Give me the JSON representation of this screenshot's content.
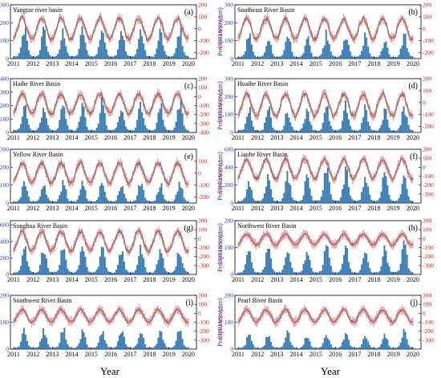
{
  "colors": {
    "bar": "#2f7fc0",
    "bar_edge": "#1b4f80",
    "line": "#8a7070",
    "line_err": "#e05050",
    "left_axis": "#1f3fbf",
    "right_axis": "#d21e1e"
  },
  "x_axis_label": "Year",
  "left_axis_label": "Precipitation (mm)",
  "right_axis_label": "TWSA (mm)",
  "chart_data": [
    {
      "type": "bar+line",
      "panel": "(a)",
      "title": "Yangtze river basin",
      "x_ticks": [
        "2011",
        "2012",
        "2013",
        "2014",
        "2015",
        "2016",
        "2017",
        "2018",
        "2019",
        "2020"
      ],
      "x_range": [
        2011,
        2020
      ],
      "left_ylim": [
        0,
        300
      ],
      "left_ticks": [
        0,
        100,
        200,
        300
      ],
      "right_ylim": [
        -250,
        200
      ],
      "right_ticks": [
        -200,
        -100,
        0,
        100,
        200
      ],
      "precip_annual_peak_mm": [
        175,
        165,
        160,
        170,
        180,
        175,
        165,
        160,
        170
      ],
      "twsa_mean_mm": 0,
      "twsa_amplitude_mm": 90
    },
    {
      "type": "bar+line",
      "panel": "(b)",
      "title": "Southeast River   Basin",
      "x_ticks": [
        "2011",
        "2012",
        "2013",
        "2014",
        "2015",
        "2016",
        "2017",
        "2018",
        "2019",
        "2020"
      ],
      "x_range": [
        2011,
        2020
      ],
      "left_ylim": [
        0,
        300
      ],
      "left_ticks": [
        0,
        100,
        200,
        300
      ],
      "right_ylim": [
        -250,
        200
      ],
      "right_ticks": [
        -200,
        -100,
        0,
        100,
        200
      ],
      "precip_annual_peak_mm": [
        140,
        125,
        150,
        120,
        145,
        135,
        130,
        110,
        140
      ],
      "twsa_mean_mm": 0,
      "twsa_amplitude_mm": 85
    },
    {
      "type": "bar+line",
      "panel": "(c)",
      "title": "Haihe River Basin",
      "x_ticks": [
        "2011",
        "2012",
        "2013",
        "2014",
        "2015",
        "2016",
        "2017",
        "2018",
        "2019",
        "2020"
      ],
      "x_range": [
        2011,
        2020
      ],
      "left_ylim": [
        0,
        400
      ],
      "left_ticks": [
        0,
        100,
        200,
        300,
        400
      ],
      "right_ylim": [
        -400,
        200
      ],
      "right_ticks": [
        -400,
        -300,
        -200,
        -100,
        0,
        100,
        200
      ],
      "precip_annual_peak_mm": [
        220,
        210,
        230,
        200,
        240,
        225,
        235,
        215,
        240
      ],
      "twsa_mean_mm": -80,
      "twsa_amplitude_mm": 110
    },
    {
      "type": "bar+line",
      "panel": "(d)",
      "title": "Huaihe River Basin",
      "x_ticks": [
        "2011",
        "2012",
        "2013",
        "2014",
        "2015",
        "2016",
        "2017",
        "2018",
        "2019",
        "2020"
      ],
      "x_range": [
        2011,
        2020
      ],
      "left_ylim": [
        0,
        300
      ],
      "left_ticks": [
        0,
        100,
        200,
        300
      ],
      "right_ylim": [
        -250,
        200
      ],
      "right_ticks": [
        -200,
        -100,
        0,
        100,
        200
      ],
      "precip_annual_peak_mm": [
        150,
        140,
        130,
        150,
        145,
        160,
        140,
        135,
        150
      ],
      "twsa_mean_mm": -20,
      "twsa_amplitude_mm": 90
    },
    {
      "type": "bar+line",
      "panel": "(e)",
      "title": "Yellow River Basin",
      "x_ticks": [
        "2011",
        "2012",
        "2013",
        "2014",
        "2015",
        "2016",
        "2017",
        "2018",
        "2019",
        "2020"
      ],
      "x_range": [
        2011,
        2020
      ],
      "left_ylim": [
        0,
        300
      ],
      "left_ticks": [
        0,
        100,
        200,
        300
      ],
      "right_ylim": [
        -250,
        200
      ],
      "right_ticks": [
        -200,
        -100,
        0,
        100
      ],
      "precip_annual_peak_mm": [
        120,
        110,
        125,
        115,
        120,
        110,
        130,
        115,
        125
      ],
      "twsa_mean_mm": 0,
      "twsa_amplitude_mm": 85
    },
    {
      "type": "bar+line",
      "panel": "(f)",
      "title": "Liaohe River Basin",
      "x_ticks": [
        "2011",
        "2012",
        "2013",
        "2014",
        "2015",
        "2016",
        "2017",
        "2018",
        "2019",
        "2020"
      ],
      "x_range": [
        2011,
        2020
      ],
      "left_ylim": [
        0,
        600
      ],
      "left_ticks": [
        0,
        200,
        400,
        600
      ],
      "right_ylim": [
        -400,
        200
      ],
      "right_ticks": [
        -300,
        -200,
        -100,
        0,
        100,
        200
      ],
      "precip_annual_peak_mm": [
        260,
        300,
        320,
        300,
        420,
        380,
        330,
        360,
        320
      ],
      "twsa_mean_mm": -20,
      "twsa_amplitude_mm": 110
    },
    {
      "type": "bar+line",
      "panel": "(g)",
      "title": "Songhua River Basin",
      "x_ticks": [
        "2011",
        "2012",
        "2013",
        "2014",
        "2015",
        "2016",
        "2017",
        "2018",
        "2019",
        "2020"
      ],
      "x_range": [
        2011,
        2020
      ],
      "left_ylim": [
        0,
        650
      ],
      "left_ticks": [
        0,
        200,
        400,
        600
      ],
      "right_ylim": [
        -400,
        200
      ],
      "right_ticks": [
        -300,
        -200,
        -100,
        0,
        100,
        200
      ],
      "precip_annual_peak_mm": [
        350,
        330,
        380,
        340,
        360,
        330,
        320,
        340,
        330
      ],
      "twsa_mean_mm": -30,
      "twsa_amplitude_mm": 110
    },
    {
      "type": "bar+line",
      "panel": "(h)",
      "title": "Northwest River   Basin",
      "x_ticks": [
        "2011",
        "2012",
        "2013",
        "2014",
        "2015",
        "2016",
        "2017",
        "2018",
        "2019",
        "2020"
      ],
      "x_range": [
        2011,
        2020
      ],
      "left_ylim": [
        0,
        200
      ],
      "left_ticks": [
        0,
        100,
        200
      ],
      "right_ylim": [
        -400,
        200
      ],
      "right_ticks": [
        -300,
        -200,
        -100,
        0,
        100,
        200
      ],
      "precip_annual_peak_mm": [
        100,
        105,
        110,
        100,
        115,
        110,
        105,
        110,
        115
      ],
      "twsa_mean_mm": -10,
      "twsa_amplitude_mm": 60
    },
    {
      "type": "bar+line",
      "panel": "(i)",
      "title": "Southwest River   Basin",
      "x_ticks": [
        "2011",
        "2012",
        "2013",
        "2014",
        "2015",
        "2016",
        "2017",
        "2018",
        "2019",
        "2020"
      ],
      "x_range": [
        2011,
        2020
      ],
      "left_ylim": [
        0,
        200
      ],
      "left_ticks": [
        0,
        100,
        200
      ],
      "right_ylim": [
        -400,
        200
      ],
      "right_ticks": [
        -300,
        -200,
        -100,
        0,
        100,
        200
      ],
      "precip_annual_peak_mm": [
        75,
        70,
        80,
        70,
        75,
        80,
        70,
        75,
        80
      ],
      "twsa_mean_mm": -30,
      "twsa_amplitude_mm": 70
    },
    {
      "type": "bar+line",
      "panel": "(j)",
      "title": "Pearl River Basin",
      "x_ticks": [
        "2011",
        "2012",
        "2013",
        "2014",
        "2015",
        "2016",
        "2017",
        "2018",
        "2019",
        "2020"
      ],
      "x_range": [
        2011,
        2020
      ],
      "left_ylim": [
        0,
        200
      ],
      "left_ticks": [
        0,
        100,
        200
      ],
      "right_ylim": [
        -400,
        200
      ],
      "right_ticks": [
        -300,
        -200,
        -100,
        0,
        100,
        200
      ],
      "precip_annual_peak_mm": [
        60,
        55,
        65,
        55,
        60,
        70,
        60,
        55,
        75
      ],
      "twsa_mean_mm": -30,
      "twsa_amplitude_mm": 70
    }
  ]
}
